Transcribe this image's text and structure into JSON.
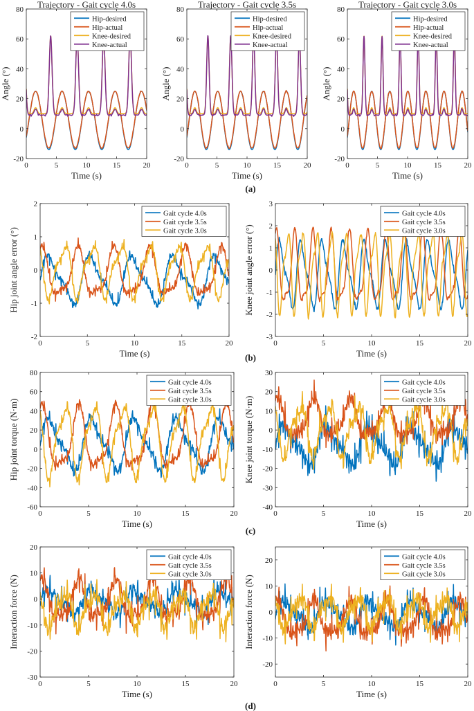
{
  "figure": {
    "panel_labels": [
      "(a)",
      "(b)",
      "(c)",
      "(d)"
    ],
    "colors": {
      "hip_desired": "#0072BD",
      "hip_actual": "#D95319",
      "knee_desired": "#EDB120",
      "knee_actual": "#7E2F8E",
      "gait_4_0": "#0072BD",
      "gait_3_5": "#D95319",
      "gait_3_0": "#EDB120"
    }
  },
  "chart_data": [
    {
      "id": "a1",
      "type": "line",
      "title": "Trajectory - Gait cycle 4.0s",
      "xlabel": "Time (s)",
      "ylabel": "Angle (°)",
      "xlim": [
        0,
        20
      ],
      "ylim": [
        -20,
        80
      ],
      "xticks": [
        0,
        5,
        10,
        15,
        20
      ],
      "yticks": [
        -20,
        0,
        20,
        40,
        60,
        80
      ],
      "legend_position": "top-right",
      "gait_period_s": 4.4,
      "series": [
        {
          "name": "Hip-desired",
          "color": "#0072BD",
          "kind": "hip",
          "min": -14,
          "max": 25
        },
        {
          "name": "Hip-actual",
          "color": "#D95319",
          "kind": "hip",
          "min": -13,
          "max": 25
        },
        {
          "name": "Knee-desired",
          "color": "#EDB120",
          "kind": "knee",
          "base": 10,
          "peak": 62
        },
        {
          "name": "Knee-actual",
          "color": "#7E2F8E",
          "kind": "knee",
          "base": 9,
          "peak": 62
        }
      ]
    },
    {
      "id": "a2",
      "type": "line",
      "title": "Trajectory - Gait cycle 3.5s",
      "xlabel": "Time (s)",
      "ylabel": "Angle (°)",
      "xlim": [
        0,
        20
      ],
      "ylim": [
        -20,
        80
      ],
      "xticks": [
        0,
        5,
        10,
        15,
        20
      ],
      "yticks": [
        -20,
        0,
        20,
        40,
        60,
        80
      ],
      "legend_position": "top-right",
      "gait_period_s": 3.8,
      "series": [
        {
          "name": "Hip-desired",
          "color": "#0072BD",
          "kind": "hip",
          "min": -14,
          "max": 25
        },
        {
          "name": "Hip-actual",
          "color": "#D95319",
          "kind": "hip",
          "min": -13,
          "max": 25
        },
        {
          "name": "Knee-desired",
          "color": "#EDB120",
          "kind": "knee",
          "base": 10,
          "peak": 62
        },
        {
          "name": "Knee-actual",
          "color": "#7E2F8E",
          "kind": "knee",
          "base": 9,
          "peak": 62
        }
      ]
    },
    {
      "id": "a3",
      "type": "line",
      "title": "Trajectory - Gait cycle 3.0s",
      "xlabel": "Time (s)",
      "ylabel": "Angle (°)",
      "xlim": [
        0,
        20
      ],
      "ylim": [
        -20,
        80
      ],
      "xticks": [
        0,
        5,
        10,
        15,
        20
      ],
      "yticks": [
        -20,
        0,
        20,
        40,
        60,
        80
      ],
      "legend_position": "top-right",
      "gait_period_s": 3.0,
      "series": [
        {
          "name": "Hip-desired",
          "color": "#0072BD",
          "kind": "hip",
          "min": -14,
          "max": 25
        },
        {
          "name": "Hip-actual",
          "color": "#D95319",
          "kind": "hip",
          "min": -13,
          "max": 25
        },
        {
          "name": "Knee-desired",
          "color": "#EDB120",
          "kind": "knee",
          "base": 10,
          "peak": 62
        },
        {
          "name": "Knee-actual",
          "color": "#7E2F8E",
          "kind": "knee",
          "base": 9,
          "peak": 62
        }
      ]
    },
    {
      "id": "b1",
      "type": "line",
      "title": "",
      "xlabel": "Time (s)",
      "ylabel": "Hip joint angle error (°)",
      "xlim": [
        0,
        20
      ],
      "ylim": [
        -2,
        2
      ],
      "xticks": [
        0,
        5,
        10,
        15,
        20
      ],
      "yticks": [
        -2,
        -1,
        0,
        1,
        2
      ],
      "legend_position": "top-right",
      "series": [
        {
          "name": "Gait cycle 4.0s",
          "color": "#0072BD",
          "period": 4.4,
          "amplitude": 0.85,
          "offset": -0.3,
          "noise": 0.12
        },
        {
          "name": "Gait cycle 3.5s",
          "color": "#D95319",
          "period": 3.8,
          "amplitude": 0.9,
          "offset": -0.15,
          "noise": 0.12
        },
        {
          "name": "Gait cycle 3.0s",
          "color": "#EDB120",
          "period": 3.0,
          "amplitude": 0.95,
          "offset": 0.0,
          "noise": 0.12
        }
      ]
    },
    {
      "id": "b2",
      "type": "line",
      "title": "",
      "xlabel": "Time (s)",
      "ylabel": "Knee joint angle error (°)",
      "xlim": [
        0,
        20
      ],
      "ylim": [
        -3,
        3
      ],
      "xticks": [
        0,
        5,
        10,
        15,
        20
      ],
      "yticks": [
        -3,
        -2,
        -1,
        0,
        1,
        2,
        3
      ],
      "legend_position": "top-right",
      "series": [
        {
          "name": "Gait cycle 4.0s",
          "color": "#0072BD",
          "period": 2.2,
          "amplitude": 1.8,
          "offset": -0.2,
          "noise": 0.08
        },
        {
          "name": "Gait cycle 3.5s",
          "color": "#D95319",
          "period": 1.9,
          "amplitude": 2.0,
          "offset": -0.1,
          "noise": 0.08
        },
        {
          "name": "Gait cycle 3.0s",
          "color": "#EDB120",
          "period": 1.5,
          "amplitude": 2.2,
          "offset": 0.0,
          "noise": 0.08
        }
      ]
    },
    {
      "id": "c1",
      "type": "line",
      "title": "",
      "xlabel": "Time (s)",
      "ylabel": "Hip joint torque (N·m)",
      "xlim": [
        0,
        20
      ],
      "ylim": [
        -60,
        80
      ],
      "xticks": [
        0,
        5,
        10,
        15,
        20
      ],
      "yticks": [
        -60,
        -40,
        -20,
        0,
        20,
        40,
        60,
        80
      ],
      "legend_position": "top-right",
      "series": [
        {
          "name": "Gait cycle 4.0s",
          "color": "#0072BD",
          "period": 4.4,
          "amplitude": 32,
          "offset": 5,
          "noise": 6
        },
        {
          "name": "Gait cycle 3.5s",
          "color": "#D95319",
          "period": 3.8,
          "amplitude": 40,
          "offset": 8,
          "noise": 5
        },
        {
          "name": "Gait cycle 3.0s",
          "color": "#EDB120",
          "period": 3.0,
          "amplitude": 45,
          "offset": 10,
          "noise": 5
        }
      ]
    },
    {
      "id": "c2",
      "type": "line",
      "title": "",
      "xlabel": "Time (s)",
      "ylabel": "Knee joint torque (N·m)",
      "xlim": [
        0,
        20
      ],
      "ylim": [
        -40,
        30
      ],
      "xticks": [
        0,
        5,
        10,
        15,
        20
      ],
      "yticks": [
        -40,
        -30,
        -20,
        -10,
        0,
        10,
        20,
        30
      ],
      "legend_position": "top-right",
      "series": [
        {
          "name": "Gait cycle 4.0s",
          "color": "#0072BD",
          "period": 4.4,
          "amplitude": 12,
          "offset": -8,
          "noise": 6
        },
        {
          "name": "Gait cycle 3.5s",
          "color": "#D95319",
          "period": 3.8,
          "amplitude": 12,
          "offset": 5,
          "noise": 5
        },
        {
          "name": "Gait cycle 3.0s",
          "color": "#EDB120",
          "period": 3.0,
          "amplitude": 16,
          "offset": 0,
          "noise": 5
        }
      ]
    },
    {
      "id": "d1",
      "type": "line",
      "title": "",
      "xlabel": "Time (s)",
      "ylabel": "Interaction force (N)",
      "xlim": [
        0,
        20
      ],
      "ylim": [
        -30,
        20
      ],
      "xticks": [
        0,
        5,
        10,
        15,
        20
      ],
      "yticks": [
        -30,
        -20,
        -10,
        0,
        10,
        20
      ],
      "legend_position": "top-right",
      "series": [
        {
          "name": "Gait cycle 4.0s",
          "color": "#0072BD",
          "period": 4.4,
          "amplitude": 5,
          "offset": -1,
          "noise": 4
        },
        {
          "name": "Gait cycle 3.5s",
          "color": "#D95319",
          "period": 3.8,
          "amplitude": 9,
          "offset": -1,
          "noise": 4
        },
        {
          "name": "Gait cycle 3.0s",
          "color": "#EDB120",
          "period": 3.0,
          "amplitude": 8,
          "offset": -4,
          "noise": 4
        }
      ]
    },
    {
      "id": "d2",
      "type": "line",
      "title": "",
      "xlabel": "Time (s)",
      "ylabel": "Interaction force (N)",
      "xlim": [
        0,
        20
      ],
      "ylim": [
        -25,
        25
      ],
      "xticks": [
        0,
        5,
        10,
        15,
        20
      ],
      "yticks": [
        -20,
        -10,
        0,
        10,
        20
      ],
      "legend_position": "top-right",
      "series": [
        {
          "name": "Gait cycle 4.0s",
          "color": "#0072BD",
          "period": 4.4,
          "amplitude": 6,
          "offset": -1,
          "noise": 4
        },
        {
          "name": "Gait cycle 3.5s",
          "color": "#D95319",
          "period": 3.8,
          "amplitude": 8,
          "offset": -3,
          "noise": 4
        },
        {
          "name": "Gait cycle 3.0s",
          "color": "#EDB120",
          "period": 3.0,
          "amplitude": 7,
          "offset": 0,
          "noise": 4
        }
      ]
    }
  ]
}
